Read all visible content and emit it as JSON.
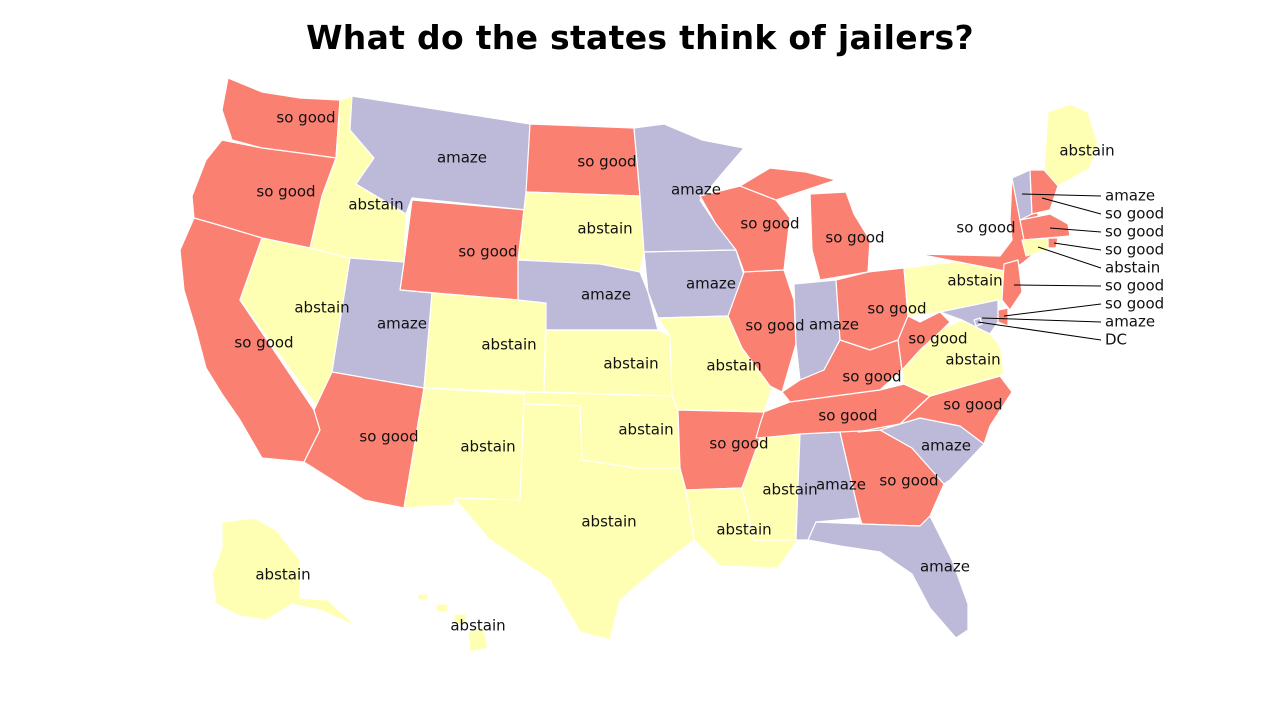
{
  "title": "What do the states think of jailers?",
  "categories": {
    "so_good": {
      "label": "so good",
      "color": "#FA8072"
    },
    "abstain": {
      "label": "abstain",
      "color": "#FFFFB3"
    },
    "amaze": {
      "label": "amaze",
      "color": "#BCB9D9"
    }
  },
  "states": [
    {
      "id": "WA",
      "value": "so good"
    },
    {
      "id": "OR",
      "value": "so good"
    },
    {
      "id": "CA",
      "value": "so good"
    },
    {
      "id": "ID",
      "value": "abstain"
    },
    {
      "id": "NV",
      "value": "abstain"
    },
    {
      "id": "MT",
      "value": "amaze"
    },
    {
      "id": "WY",
      "value": "so good"
    },
    {
      "id": "UT",
      "value": "amaze"
    },
    {
      "id": "AZ",
      "value": "so good"
    },
    {
      "id": "CO",
      "value": "abstain"
    },
    {
      "id": "NM",
      "value": "abstain"
    },
    {
      "id": "ND",
      "value": "so good"
    },
    {
      "id": "SD",
      "value": "abstain"
    },
    {
      "id": "NE",
      "value": "amaze"
    },
    {
      "id": "KS",
      "value": "abstain"
    },
    {
      "id": "OK",
      "value": "abstain"
    },
    {
      "id": "TX",
      "value": "abstain"
    },
    {
      "id": "MN",
      "value": "amaze"
    },
    {
      "id": "IA",
      "value": "amaze"
    },
    {
      "id": "MO",
      "value": "abstain"
    },
    {
      "id": "AR",
      "value": "so good"
    },
    {
      "id": "LA",
      "value": "abstain"
    },
    {
      "id": "WI",
      "value": "so good"
    },
    {
      "id": "IL",
      "value": "so good"
    },
    {
      "id": "MI",
      "value": "so good"
    },
    {
      "id": "IN",
      "value": "amaze"
    },
    {
      "id": "OH",
      "value": "so good"
    },
    {
      "id": "KY",
      "value": "so good"
    },
    {
      "id": "TN",
      "value": "so good"
    },
    {
      "id": "MS",
      "value": "abstain"
    },
    {
      "id": "AL",
      "value": "amaze"
    },
    {
      "id": "GA",
      "value": "so good"
    },
    {
      "id": "FL",
      "value": "amaze"
    },
    {
      "id": "SC",
      "value": "amaze"
    },
    {
      "id": "NC",
      "value": "so good"
    },
    {
      "id": "VA",
      "value": "abstain"
    },
    {
      "id": "WV",
      "value": "so good"
    },
    {
      "id": "PA",
      "value": "abstain"
    },
    {
      "id": "NY",
      "value": "so good"
    },
    {
      "id": "ME",
      "value": "abstain"
    },
    {
      "id": "AK",
      "value": "abstain"
    },
    {
      "id": "HI",
      "value": "abstain"
    },
    {
      "id": "VT",
      "value": "amaze"
    },
    {
      "id": "NH",
      "value": "so good"
    },
    {
      "id": "MA",
      "value": "so good"
    },
    {
      "id": "RI",
      "value": "so good"
    },
    {
      "id": "CT",
      "value": "abstain"
    },
    {
      "id": "NJ",
      "value": "so good"
    },
    {
      "id": "DE",
      "value": "so good"
    },
    {
      "id": "MD",
      "value": "amaze"
    },
    {
      "id": "DC",
      "value": "DC"
    }
  ],
  "callouts": [
    {
      "state": "VT",
      "text": "amaze"
    },
    {
      "state": "NH",
      "text": "so good"
    },
    {
      "state": "MA",
      "text": "so good"
    },
    {
      "state": "RI",
      "text": "so good"
    },
    {
      "state": "CT",
      "text": "abstain"
    },
    {
      "state": "NJ",
      "text": "so good"
    },
    {
      "state": "DE",
      "text": "so good"
    },
    {
      "state": "MD",
      "text": "amaze"
    },
    {
      "state": "DC",
      "text": "DC"
    }
  ]
}
